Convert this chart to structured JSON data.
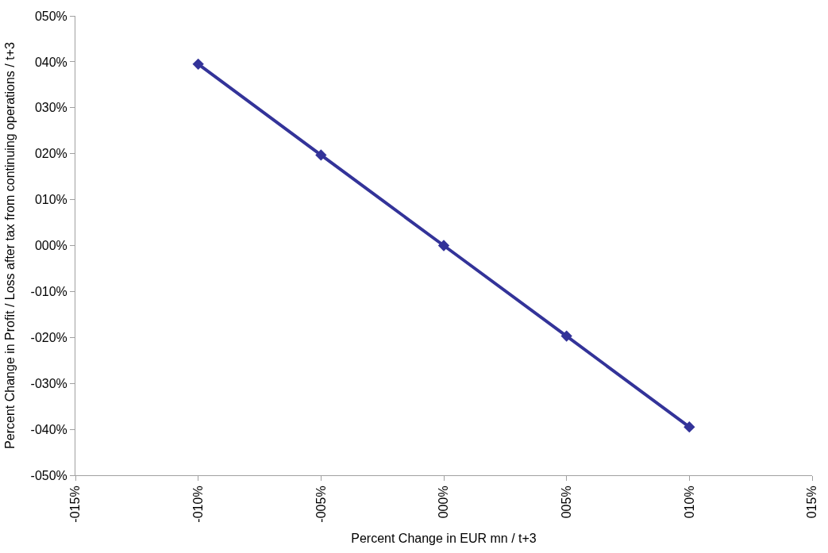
{
  "chart_data": {
    "type": "line",
    "xlabel": "Percent Change in EUR mn / t+3",
    "ylabel": "Percent Change in Profit / Loss after tax from continuing operations / t+3",
    "x": [
      -10,
      -5,
      0,
      5,
      10
    ],
    "series": [
      {
        "color": "#333399",
        "values": [
          39.5,
          19.7,
          0,
          -19.7,
          -39.5
        ]
      }
    ],
    "xlim": [
      -15,
      15
    ],
    "xticks": [
      {
        "value": -15,
        "label": "-015%"
      },
      {
        "value": -10,
        "label": "-010%"
      },
      {
        "value": -5,
        "label": "-005%"
      },
      {
        "value": 0,
        "label": "000%"
      },
      {
        "value": 5,
        "label": "005%"
      },
      {
        "value": 10,
        "label": "010%"
      },
      {
        "value": 15,
        "label": "015%"
      }
    ],
    "ylim": [
      -50,
      50
    ],
    "yticks": [
      {
        "value": -50,
        "label": "-050%"
      },
      {
        "value": -40,
        "label": "-040%"
      },
      {
        "value": -30,
        "label": "-030%"
      },
      {
        "value": -20,
        "label": "-020%"
      },
      {
        "value": -10,
        "label": "-010%"
      },
      {
        "value": 0,
        "label": "000%"
      },
      {
        "value": 10,
        "label": "010%"
      },
      {
        "value": 20,
        "label": "020%"
      },
      {
        "value": 30,
        "label": "030%"
      },
      {
        "value": 40,
        "label": "040%"
      },
      {
        "value": 50,
        "label": "050%"
      }
    ],
    "marker": "diamond",
    "line_style": "solid"
  }
}
